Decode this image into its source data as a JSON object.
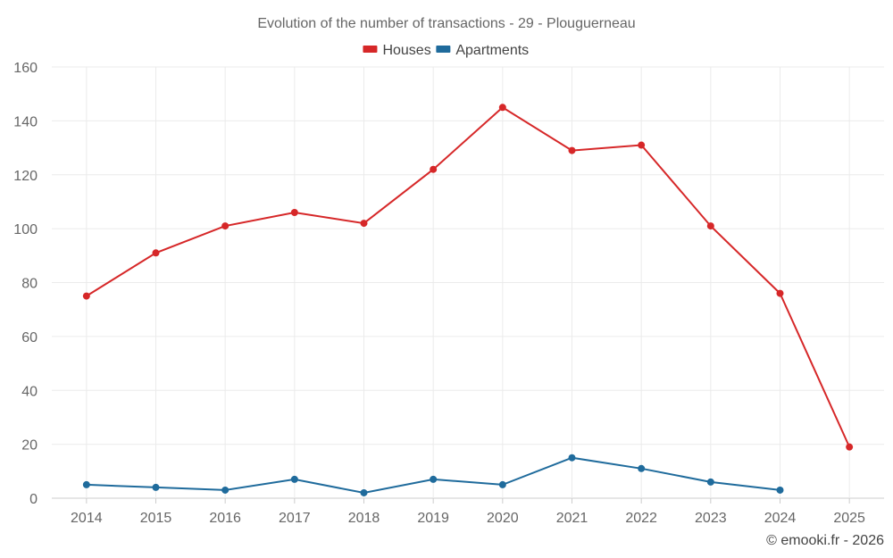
{
  "chart_data": {
    "type": "line",
    "title": "Evolution of the number of transactions - 29 - Plouguerneau",
    "categories": [
      "2014",
      "2015",
      "2016",
      "2017",
      "2018",
      "2019",
      "2020",
      "2021",
      "2022",
      "2023",
      "2024",
      "2025"
    ],
    "series": [
      {
        "name": "Houses",
        "color": "#d62728",
        "values": [
          75,
          91,
          101,
          106,
          102,
          122,
          145,
          129,
          131,
          101,
          76,
          19
        ]
      },
      {
        "name": "Apartments",
        "color": "#1f6b9c",
        "values": [
          5,
          4,
          3,
          7,
          2,
          7,
          5,
          15,
          11,
          6,
          3,
          null
        ]
      }
    ],
    "ylim": [
      0,
      160
    ],
    "yticks": [
      0,
      20,
      40,
      60,
      80,
      100,
      120,
      140,
      160
    ],
    "xlabel": "",
    "ylabel": "",
    "grid": true,
    "legend": "top-center"
  },
  "credit": "© emooki.fr - 2026"
}
